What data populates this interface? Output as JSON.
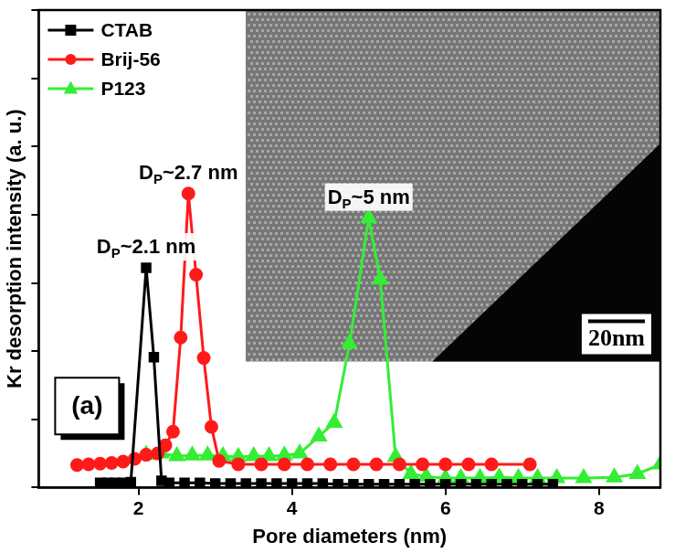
{
  "chart_data": {
    "type": "line",
    "x_label": "Pore diameters (nm)",
    "y_label": "Kr desorption intensity (a. u.)",
    "xlim": [
      0.7,
      8.8
    ],
    "xticks": [
      2,
      4,
      6,
      8
    ],
    "ylim": [
      0,
      7
    ],
    "yticks": [
      0,
      1,
      2,
      3,
      4,
      5,
      6,
      7
    ],
    "grid": false,
    "tick_labels": "x",
    "legend": "upper left",
    "panel_label": "(a)",
    "inset_scale_bar": "20nm",
    "annotations": [
      {
        "series": "CTAB",
        "base": "D",
        "subscript": "P",
        "text": "~2.1 nm"
      },
      {
        "series": "Brij-56",
        "base": "D",
        "subscript": "P",
        "text": "~2.7 nm"
      },
      {
        "series": "P123",
        "base": "D",
        "subscript": "P",
        "text": "~5 nm"
      }
    ],
    "series": [
      {
        "name": "CTAB",
        "color": "#000000",
        "marker": "square",
        "x": [
          1.5,
          1.6,
          1.7,
          1.8,
          1.9,
          2.1,
          2.2,
          2.3,
          2.4,
          2.6,
          2.8,
          3.0,
          3.2,
          3.4,
          3.6,
          3.8,
          4.0,
          4.2,
          4.4,
          4.6,
          4.8,
          5.0,
          5.2,
          5.4,
          5.6,
          5.8,
          6.0,
          6.2,
          6.4,
          6.6,
          6.8,
          7.0,
          7.2,
          7.4
        ],
        "values": [
          0.07,
          0.07,
          0.07,
          0.07,
          0.08,
          3.22,
          1.91,
          0.1,
          0.07,
          0.07,
          0.07,
          0.06,
          0.06,
          0.06,
          0.06,
          0.06,
          0.06,
          0.06,
          0.06,
          0.05,
          0.05,
          0.05,
          0.05,
          0.05,
          0.05,
          0.05,
          0.05,
          0.05,
          0.05,
          0.05,
          0.05,
          0.05,
          0.05,
          0.05
        ]
      },
      {
        "name": "Brij-56",
        "color": "#ff1a1a",
        "marker": "circle",
        "x": [
          1.2,
          1.35,
          1.5,
          1.65,
          1.8,
          1.95,
          2.1,
          2.25,
          2.35,
          2.45,
          2.55,
          2.65,
          2.75,
          2.85,
          2.95,
          3.05,
          3.3,
          3.6,
          3.9,
          4.2,
          4.5,
          4.8,
          5.1,
          5.4,
          5.7,
          6.0,
          6.3,
          6.6,
          7.1
        ],
        "values": [
          0.33,
          0.34,
          0.35,
          0.36,
          0.38,
          0.42,
          0.48,
          0.5,
          0.62,
          0.82,
          2.2,
          4.31,
          3.12,
          1.9,
          0.89,
          0.39,
          0.34,
          0.34,
          0.34,
          0.34,
          0.34,
          0.34,
          0.34,
          0.34,
          0.34,
          0.34,
          0.34,
          0.34,
          0.34
        ]
      },
      {
        "name": "P123",
        "color": "#33ee33",
        "marker": "triangle",
        "x": [
          2.1,
          2.3,
          2.5,
          2.7,
          2.9,
          3.1,
          3.3,
          3.5,
          3.7,
          3.9,
          4.1,
          4.35,
          4.55,
          4.75,
          5.0,
          5.15,
          5.35,
          5.55,
          5.75,
          6.0,
          6.2,
          6.45,
          6.7,
          6.95,
          7.2,
          7.45,
          7.8,
          8.2,
          8.5,
          8.8
        ],
        "values": [
          0.48,
          0.5,
          0.46,
          0.47,
          0.47,
          0.46,
          0.45,
          0.46,
          0.46,
          0.47,
          0.5,
          0.75,
          0.95,
          2.11,
          3.95,
          3.05,
          0.45,
          0.2,
          0.16,
          0.14,
          0.14,
          0.14,
          0.15,
          0.14,
          0.14,
          0.14,
          0.14,
          0.15,
          0.2,
          0.34
        ]
      }
    ]
  }
}
